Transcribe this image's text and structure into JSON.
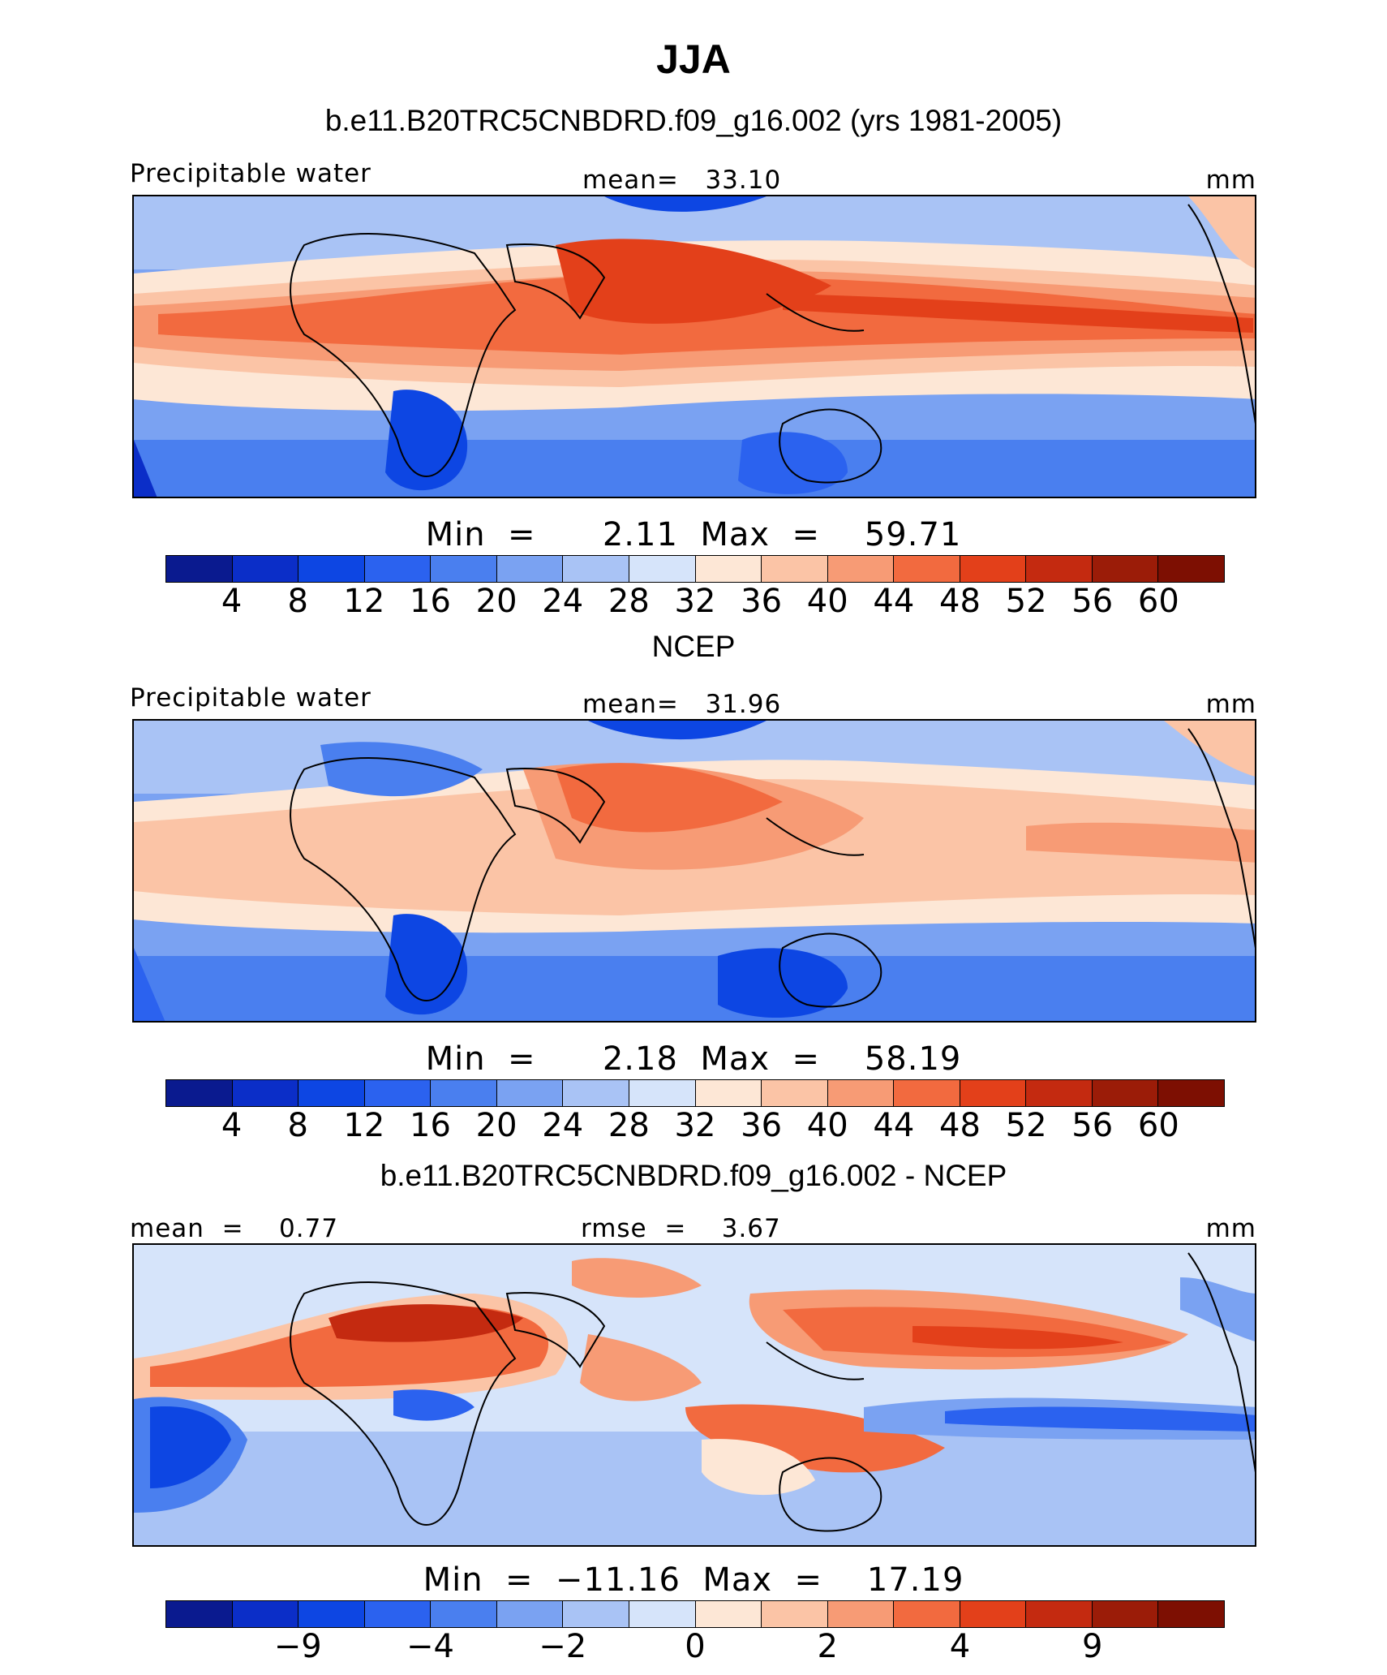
{
  "title": "JJA",
  "palette": [
    "#0a1a8f",
    "#0b2ec8",
    "#0d46e3",
    "#2b62ef",
    "#4a7fef",
    "#7aa2f2",
    "#a9c3f5",
    "#d6e4fa",
    "#fde7d6",
    "#fbc4a6",
    "#f79b75",
    "#f26a3f",
    "#e3401a",
    "#c42a10",
    "#9b1c08",
    "#7d0f02"
  ],
  "panels": [
    {
      "subtitle": "b.e11.B20TRC5CNBDRD.f09_g16.002 (yrs 1981-2005)",
      "left_label": "Precipitable water",
      "mid_label": "mean=   33.10",
      "units": "mm",
      "minmax": "Min  =      2.11  Max  =    59.71",
      "ticks": [
        "4",
        "8",
        "12",
        "16",
        "20",
        "24",
        "28",
        "32",
        "36",
        "40",
        "44",
        "48",
        "52",
        "56",
        "60"
      ],
      "map_name": "model-precipitable-water-map"
    },
    {
      "subtitle": "NCEP",
      "left_label": "Precipitable water",
      "mid_label": "mean=   31.96",
      "units": "mm",
      "minmax": "Min  =      2.18  Max  =    58.19",
      "ticks": [
        "4",
        "8",
        "12",
        "16",
        "20",
        "24",
        "28",
        "32",
        "36",
        "40",
        "44",
        "48",
        "52",
        "56",
        "60"
      ],
      "map_name": "ncep-precipitable-water-map"
    },
    {
      "subtitle": "b.e11.B20TRC5CNBDRD.f09_g16.002 - NCEP",
      "left_label": "mean  =    0.77",
      "mid_label": "rmse  =    3.67",
      "units": "mm",
      "minmax": "Min  =  −11.16  Max  =    17.19",
      "ticks": [
        "",
        "−9",
        "",
        "−4",
        "",
        "−2",
        "",
        "0",
        "",
        "2",
        "",
        "4",
        "",
        "9",
        ""
      ],
      "map_name": "difference-map"
    }
  ],
  "chart_data": [
    {
      "type": "heatmap",
      "title": "JJA",
      "subtitle": "b.e11.B20TRC5CNBDRD.f09_g16.002 (yrs 1981-2005)",
      "variable": "Precipitable water",
      "units": "mm",
      "mean": 33.1,
      "min": 2.11,
      "max": 59.71,
      "colorbar_levels": [
        4,
        8,
        12,
        16,
        20,
        24,
        28,
        32,
        36,
        40,
        44,
        48,
        52,
        56,
        60
      ]
    },
    {
      "type": "heatmap",
      "subtitle": "NCEP",
      "variable": "Precipitable water",
      "units": "mm",
      "mean": 31.96,
      "min": 2.18,
      "max": 58.19,
      "colorbar_levels": [
        4,
        8,
        12,
        16,
        20,
        24,
        28,
        32,
        36,
        40,
        44,
        48,
        52,
        56,
        60
      ]
    },
    {
      "type": "heatmap",
      "subtitle": "b.e11.B20TRC5CNBDRD.f09_g16.002 - NCEP",
      "units": "mm",
      "mean": 0.77,
      "rmse": 3.67,
      "min": -11.16,
      "max": 17.19,
      "colorbar_labels": [
        -9,
        -4,
        -2,
        0,
        2,
        4,
        9
      ]
    }
  ]
}
